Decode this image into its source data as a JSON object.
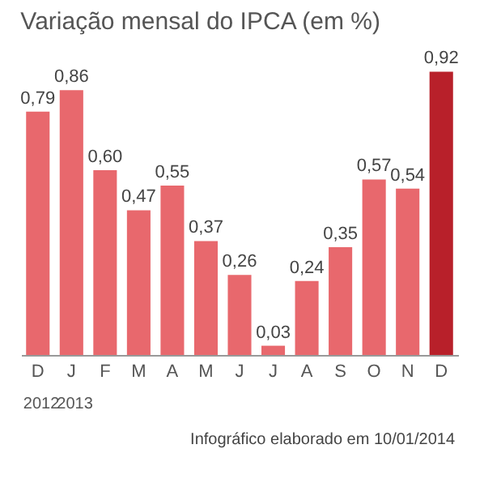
{
  "chart_data": {
    "type": "bar",
    "title": "Variação mensal do IPCA (em %)",
    "categories": [
      "D",
      "J",
      "F",
      "M",
      "A",
      "M",
      "J",
      "J",
      "A",
      "S",
      "O",
      "N",
      "D"
    ],
    "values": [
      0.79,
      0.86,
      0.6,
      0.47,
      0.55,
      0.37,
      0.26,
      0.03,
      0.24,
      0.35,
      0.57,
      0.54,
      0.92
    ],
    "colors": [
      "#e8686d",
      "#e8686d",
      "#e8686d",
      "#e8686d",
      "#e8686d",
      "#e8686d",
      "#e8686d",
      "#e8686d",
      "#e8686d",
      "#e8686d",
      "#e8686d",
      "#e8686d",
      "#b8202a"
    ],
    "value_labels": [
      "0,79",
      "0,86",
      "0,60",
      "0,47",
      "0,55",
      "0,37",
      "0,26",
      "0,03",
      "0,24",
      "0,35",
      "0,57",
      "0,54",
      "0,92"
    ],
    "annotations": [
      "2012",
      "2013",
      "Infográfico elaborado em 10/01/2014"
    ]
  }
}
